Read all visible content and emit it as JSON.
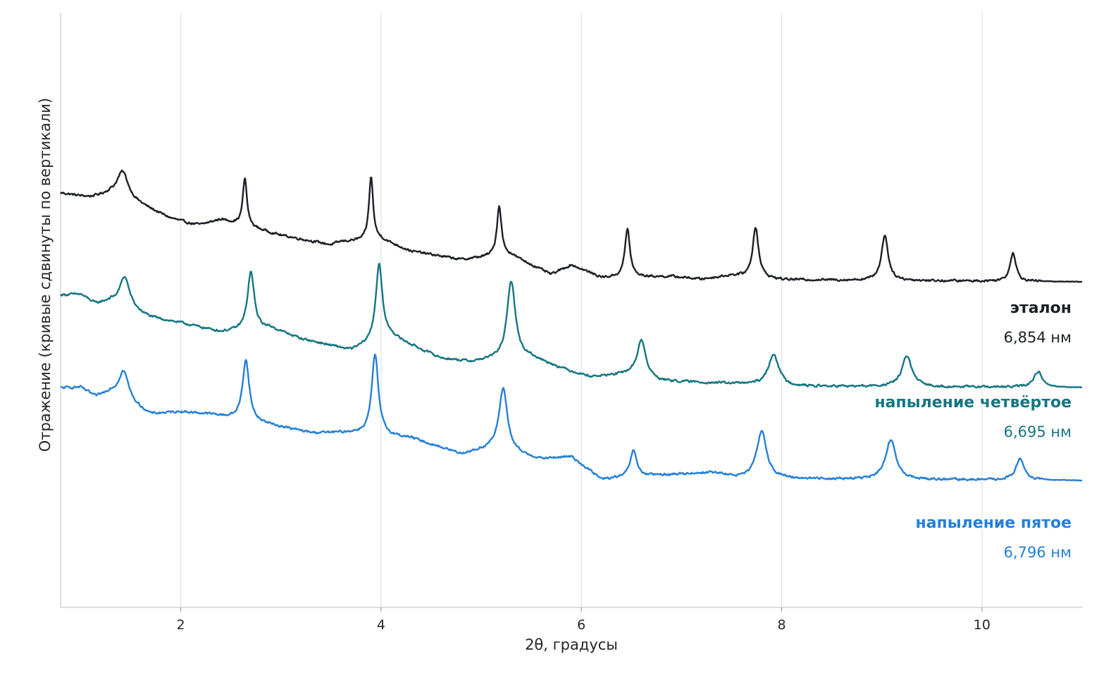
{
  "chart_data": {
    "type": "line",
    "title": "",
    "xlabel": "2θ, градусы",
    "ylabel": "Отражение (кривые сдвинуты по вертикали)",
    "xlim": [
      0.8,
      11.0
    ],
    "xticks": [
      2,
      4,
      6,
      8,
      10
    ],
    "xtick_labels": [
      "2",
      "4",
      "6",
      "8",
      "10"
    ],
    "grid": "vertical",
    "y_ticks_shown": false,
    "series": [
      {
        "name": "эталон",
        "annotation": "6,854 нм",
        "color": "#1c1f26",
        "offset": 2,
        "baseline": 0.0,
        "start_level": 1.68,
        "background": [
          [
            0.8,
            1.68
          ],
          [
            1.0,
            1.62
          ],
          [
            1.1,
            1.6
          ],
          [
            1.3,
            1.65
          ],
          [
            1.6,
            1.45
          ],
          [
            1.9,
            1.2
          ],
          [
            2.1,
            1.1
          ],
          [
            2.2,
            1.08
          ],
          [
            2.4,
            1.18
          ],
          [
            3.0,
            0.88
          ],
          [
            3.5,
            0.7
          ],
          [
            3.6,
            0.76
          ],
          [
            4.0,
            0.8
          ],
          [
            4.3,
            0.58
          ],
          [
            4.8,
            0.42
          ],
          [
            5.1,
            0.48
          ],
          [
            5.3,
            0.5
          ],
          [
            5.7,
            0.14
          ],
          [
            5.9,
            0.32
          ],
          [
            6.2,
            0.08
          ],
          [
            6.9,
            0.1
          ],
          [
            7.2,
            0.05
          ],
          [
            7.5,
            0.12
          ],
          [
            8.0,
            0.04
          ],
          [
            11.0,
            0.0
          ]
        ],
        "peaks": [
          {
            "x": 1.42,
            "height": 0.52,
            "width": 0.07
          },
          {
            "x": 2.64,
            "height": 0.9,
            "width": 0.025
          },
          {
            "x": 3.9,
            "height": 1.2,
            "width": 0.025
          },
          {
            "x": 5.18,
            "height": 0.95,
            "width": 0.028
          },
          {
            "x": 6.46,
            "height": 0.92,
            "width": 0.03
          },
          {
            "x": 7.74,
            "height": 0.96,
            "width": 0.035
          },
          {
            "x": 9.03,
            "height": 0.86,
            "width": 0.04
          },
          {
            "x": 10.31,
            "height": 0.55,
            "width": 0.035
          }
        ]
      },
      {
        "name": "напыление четвёртое",
        "annotation": "6,695 нм",
        "color": "#157682",
        "offset": 1,
        "baseline": 0.0,
        "start_level": 1.75,
        "background": [
          [
            0.8,
            1.75
          ],
          [
            1.0,
            1.76
          ],
          [
            1.15,
            1.58
          ],
          [
            1.3,
            1.62
          ],
          [
            1.7,
            1.32
          ],
          [
            2.0,
            1.22
          ],
          [
            2.4,
            1.05
          ],
          [
            2.9,
            1.12
          ],
          [
            3.2,
            0.92
          ],
          [
            3.7,
            0.7
          ],
          [
            4.1,
            0.96
          ],
          [
            4.6,
            0.55
          ],
          [
            4.9,
            0.48
          ],
          [
            5.1,
            0.52
          ],
          [
            5.5,
            0.56
          ],
          [
            5.9,
            0.3
          ],
          [
            6.1,
            0.2
          ],
          [
            6.5,
            0.25
          ],
          [
            6.8,
            0.12
          ],
          [
            7.4,
            0.08
          ],
          [
            8.2,
            0.02
          ],
          [
            11.0,
            0.0
          ]
        ],
        "peaks": [
          {
            "x": 1.44,
            "height": 0.58,
            "width": 0.06
          },
          {
            "x": 2.7,
            "height": 1.1,
            "width": 0.04
          },
          {
            "x": 3.98,
            "height": 1.45,
            "width": 0.04
          },
          {
            "x": 5.3,
            "height": 1.48,
            "width": 0.05
          },
          {
            "x": 6.6,
            "height": 0.7,
            "width": 0.05
          },
          {
            "x": 7.92,
            "height": 0.6,
            "width": 0.06
          },
          {
            "x": 9.25,
            "height": 0.58,
            "width": 0.06
          },
          {
            "x": 10.56,
            "height": 0.3,
            "width": 0.05
          }
        ]
      },
      {
        "name": "напыление пятое",
        "annotation": "6,796 нм",
        "color": "#2580d6",
        "offset": 0,
        "baseline": 0.0,
        "start_level": 1.75,
        "background": [
          [
            0.8,
            1.75
          ],
          [
            1.0,
            1.76
          ],
          [
            1.15,
            1.58
          ],
          [
            1.3,
            1.66
          ],
          [
            1.7,
            1.25
          ],
          [
            2.0,
            1.3
          ],
          [
            2.3,
            1.25
          ],
          [
            2.9,
            1.05
          ],
          [
            3.3,
            0.9
          ],
          [
            3.7,
            0.9
          ],
          [
            4.3,
            0.8
          ],
          [
            4.8,
            0.5
          ],
          [
            5.1,
            0.6
          ],
          [
            5.6,
            0.4
          ],
          [
            5.9,
            0.45
          ],
          [
            6.2,
            0.02
          ],
          [
            6.8,
            0.1
          ],
          [
            7.3,
            0.15
          ],
          [
            7.6,
            0.04
          ],
          [
            8.2,
            0.03
          ],
          [
            11.0,
            0.0
          ]
        ],
        "peaks": [
          {
            "x": 1.43,
            "height": 0.55,
            "width": 0.06
          },
          {
            "x": 2.65,
            "height": 1.15,
            "width": 0.04
          },
          {
            "x": 3.94,
            "height": 1.52,
            "width": 0.04
          },
          {
            "x": 5.22,
            "height": 1.2,
            "width": 0.05
          },
          {
            "x": 6.52,
            "height": 0.5,
            "width": 0.04
          },
          {
            "x": 7.8,
            "height": 0.9,
            "width": 0.06
          },
          {
            "x": 9.09,
            "height": 0.75,
            "width": 0.06
          },
          {
            "x": 10.38,
            "height": 0.4,
            "width": 0.05
          }
        ]
      }
    ]
  }
}
